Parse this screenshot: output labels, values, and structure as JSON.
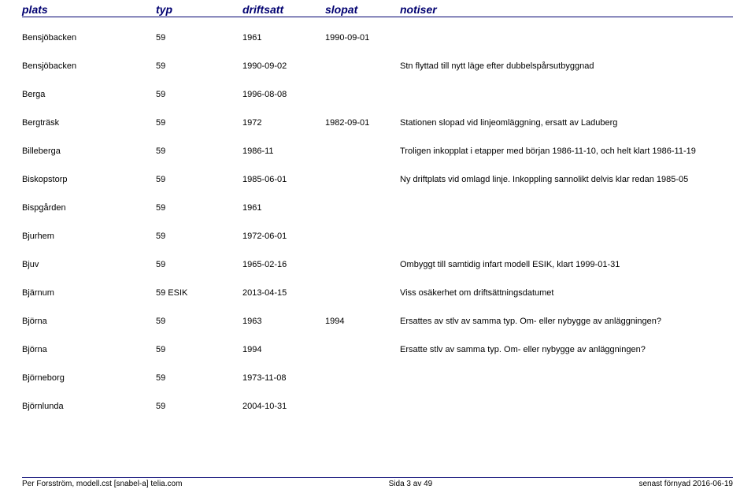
{
  "header": {
    "plats": "plats",
    "typ": "typ",
    "driftsatt": "driftsatt",
    "slopat": "slopat",
    "notiser": "notiser"
  },
  "rows": [
    {
      "plats": "Bensjöbacken",
      "typ": "59",
      "driftsatt": "1961",
      "slopat": "1990-09-01",
      "notiser": ""
    },
    {
      "plats": "Bensjöbacken",
      "typ": "59",
      "driftsatt": "1990-09-02",
      "slopat": "",
      "notiser": "Stn flyttad till nytt läge efter dubbelspårsutbyggnad"
    },
    {
      "plats": "Berga",
      "typ": "59",
      "driftsatt": "1996-08-08",
      "slopat": "",
      "notiser": ""
    },
    {
      "plats": "Bergträsk",
      "typ": "59",
      "driftsatt": "1972",
      "slopat": "1982-09-01",
      "notiser": "Stationen slopad vid linjeomläggning, ersatt av Laduberg"
    },
    {
      "plats": "Billeberga",
      "typ": "59",
      "driftsatt": "1986-11",
      "slopat": "",
      "notiser": "Troligen inkopplat i etapper med början 1986-11-10, och helt klart 1986-11-19"
    },
    {
      "plats": "Biskopstorp",
      "typ": "59",
      "driftsatt": "1985-06-01",
      "slopat": "",
      "notiser": "Ny driftplats vid omlagd linje. Inkoppling sannolikt delvis klar redan 1985-05"
    },
    {
      "plats": "Bispgården",
      "typ": "59",
      "driftsatt": "1961",
      "slopat": "",
      "notiser": ""
    },
    {
      "plats": "Bjurhem",
      "typ": "59",
      "driftsatt": "1972-06-01",
      "slopat": "",
      "notiser": ""
    },
    {
      "plats": "Bjuv",
      "typ": "59",
      "driftsatt": "1965-02-16",
      "slopat": "",
      "notiser": "Ombyggt till samtidig infart modell ESIK, klart 1999-01-31"
    },
    {
      "plats": "Bjärnum",
      "typ": "59 ESIK",
      "driftsatt": "2013-04-15",
      "slopat": "",
      "notiser": "Viss osäkerhet om driftsättningsdatumet"
    },
    {
      "plats": "Björna",
      "typ": "59",
      "driftsatt": "1963",
      "slopat": "1994",
      "notiser": "Ersattes av stlv av samma typ. Om- eller nybygge av anläggningen?"
    },
    {
      "plats": "Björna",
      "typ": "59",
      "driftsatt": "1994",
      "slopat": "",
      "notiser": "Ersatte stlv av samma typ. Om- eller nybygge av anläggningen?"
    },
    {
      "plats": "Björneborg",
      "typ": "59",
      "driftsatt": "1973-11-08",
      "slopat": "",
      "notiser": ""
    },
    {
      "plats": "Björnlunda",
      "typ": "59",
      "driftsatt": "2004-10-31",
      "slopat": "",
      "notiser": ""
    }
  ],
  "footer": {
    "left": "Per Forsström, modell.cst [snabel-a] telia.com",
    "center": "Sida 3 av 49",
    "right": "senast förnyad 2016-06-19"
  }
}
